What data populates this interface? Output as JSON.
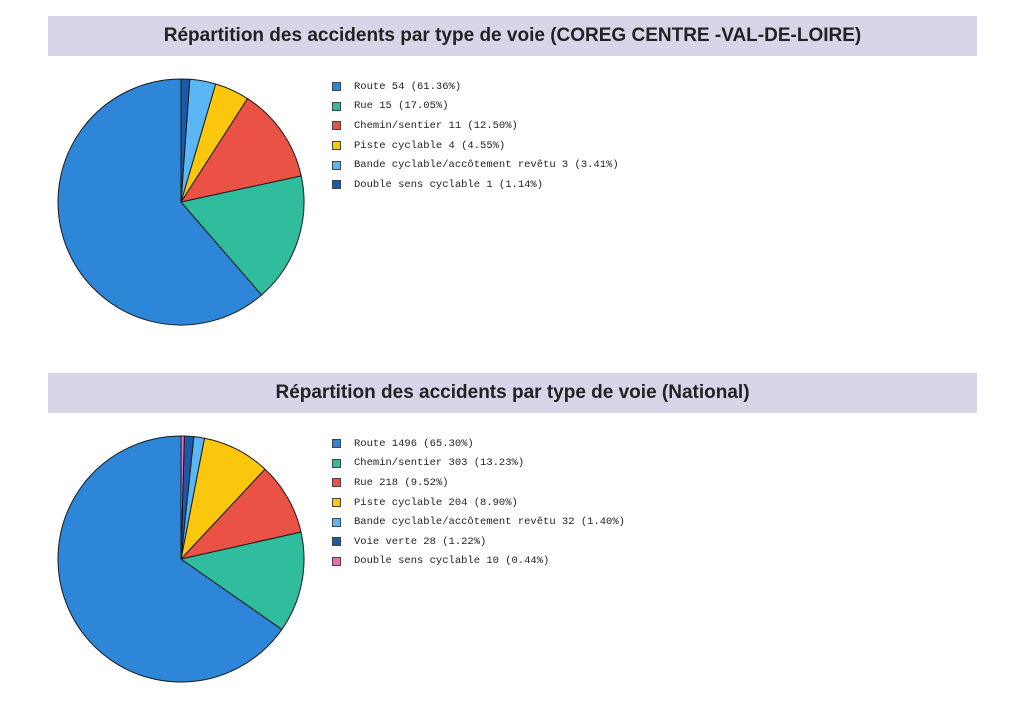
{
  "chart_data": [
    {
      "type": "pie",
      "title": "Répartition des accidents par type de voie (COREG CENTRE -VAL-DE-LOIRE)",
      "slices": [
        {
          "label": "Route 54 (61.36%)",
          "name": "Route",
          "value": 54,
          "percent": 61.36,
          "color": "#2e86d9"
        },
        {
          "label": "Rue 15 (17.05%)",
          "name": "Rue",
          "value": 15,
          "percent": 17.05,
          "color": "#30bd9e"
        },
        {
          "label": "Chemin/sentier 11 (12.50%)",
          "name": "Chemin/sentier",
          "value": 11,
          "percent": 12.5,
          "color": "#e95244"
        },
        {
          "label": "Piste cyclable 4 (4.55%)",
          "name": "Piste cyclable",
          "value": 4,
          "percent": 4.55,
          "color": "#fbc70d"
        },
        {
          "label": "Bande cyclable/accôtement revêtu 3 (3.41%)",
          "name": "Bande cyclable/accôtement revêtu",
          "value": 3,
          "percent": 3.41,
          "color": "#5ab6f5"
        },
        {
          "label": "Double sens cyclable 1 (1.14%)",
          "name": "Double sens cyclable",
          "value": 1,
          "percent": 1.14,
          "color": "#1b5aa6"
        }
      ]
    },
    {
      "type": "pie",
      "title": "Répartition des accidents par type de voie (National)",
      "slices": [
        {
          "label": "Route 1496 (65.30%)",
          "name": "Route",
          "value": 1496,
          "percent": 65.3,
          "color": "#2e86d9"
        },
        {
          "label": "Chemin/sentier 303 (13.23%)",
          "name": "Chemin/sentier",
          "value": 303,
          "percent": 13.23,
          "color": "#30bd9e"
        },
        {
          "label": "Rue 218 (9.52%)",
          "name": "Rue",
          "value": 218,
          "percent": 9.52,
          "color": "#e95244"
        },
        {
          "label": "Piste cyclable 204 (8.90%)",
          "name": "Piste cyclable",
          "value": 204,
          "percent": 8.9,
          "color": "#fbc70d"
        },
        {
          "label": "Bande cyclable/accôtement revêtu 32 (1.40%)",
          "name": "Bande cyclable/accôtement revêtu",
          "value": 32,
          "percent": 1.4,
          "color": "#5ab6f5"
        },
        {
          "label": "Voie verte 28 (1.22%)",
          "name": "Voie verte",
          "value": 28,
          "percent": 1.22,
          "color": "#1b5aa6"
        },
        {
          "label": "Double sens cyclable 10 (0.44%)",
          "name": "Double sens cyclable",
          "value": 10,
          "percent": 0.44,
          "color": "#ef6bb6"
        }
      ]
    }
  ]
}
